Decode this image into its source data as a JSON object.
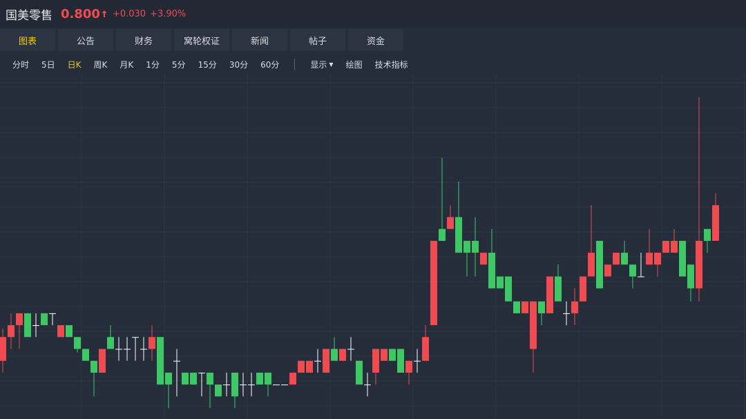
{
  "header": {
    "name": "国美零售",
    "price": "0.800",
    "change": "+0.030",
    "change_pct": "+3.90%"
  },
  "tabs": {
    "items": [
      "图表",
      "公告",
      "财务",
      "窝轮权证",
      "新闻",
      "帖子",
      "资金"
    ],
    "active": 0
  },
  "toolbar": {
    "periods": [
      "分时",
      "5日",
      "日K",
      "周K",
      "月K",
      "1分",
      "5分",
      "15分",
      "30分",
      "60分"
    ],
    "active": 2,
    "tools": [
      "显示",
      "绘图",
      "技术指标"
    ]
  },
  "chart_data": {
    "type": "candlestick",
    "up_color": "#f04b50",
    "down_color": "#3ec865",
    "doji_color": "#ffffff",
    "ylim": [
      0.62,
      0.91
    ],
    "ohlc": [
      [
        0.669,
        0.696,
        0.659,
        0.689
      ],
      [
        0.689,
        0.709,
        0.679,
        0.699
      ],
      [
        0.699,
        0.709,
        0.679,
        0.709
      ],
      [
        0.709,
        0.709,
        0.689,
        0.689
      ],
      [
        0.699,
        0.709,
        0.689,
        0.699
      ],
      [
        0.709,
        0.709,
        0.699,
        0.699
      ],
      [
        0.709,
        0.709,
        0.699,
        0.709
      ],
      [
        0.689,
        0.699,
        0.689,
        0.699
      ],
      [
        0.699,
        0.699,
        0.689,
        0.689
      ],
      [
        0.689,
        0.689,
        0.676,
        0.679
      ],
      [
        0.679,
        0.679,
        0.669,
        0.669
      ],
      [
        0.669,
        0.669,
        0.639,
        0.659
      ],
      [
        0.659,
        0.679,
        0.659,
        0.679
      ],
      [
        0.689,
        0.699,
        0.679,
        0.679
      ],
      [
        0.679,
        0.689,
        0.669,
        0.679
      ],
      [
        0.679,
        0.689,
        0.669,
        0.679
      ],
      [
        0.689,
        0.689,
        0.669,
        0.689
      ],
      [
        0.679,
        0.689,
        0.669,
        0.679
      ],
      [
        0.679,
        0.699,
        0.669,
        0.689
      ],
      [
        0.689,
        0.689,
        0.649,
        0.649
      ],
      [
        0.659,
        0.659,
        0.629,
        0.649
      ],
      [
        0.669,
        0.679,
        0.639,
        0.669
      ],
      [
        0.659,
        0.659,
        0.649,
        0.649
      ],
      [
        0.659,
        0.659,
        0.649,
        0.649
      ],
      [
        0.659,
        0.659,
        0.639,
        0.659
      ],
      [
        0.659,
        0.659,
        0.629,
        0.649
      ],
      [
        0.649,
        0.649,
        0.639,
        0.639
      ],
      [
        0.649,
        0.659,
        0.639,
        0.649
      ],
      [
        0.659,
        0.659,
        0.629,
        0.639
      ],
      [
        0.649,
        0.659,
        0.639,
        0.649
      ],
      [
        0.649,
        0.659,
        0.639,
        0.649
      ],
      [
        0.659,
        0.659,
        0.649,
        0.649
      ],
      [
        0.659,
        0.659,
        0.639,
        0.649
      ],
      [
        0.649,
        0.649,
        0.649,
        0.649
      ],
      [
        0.649,
        0.649,
        0.649,
        0.649
      ],
      [
        0.649,
        0.659,
        0.649,
        0.659
      ],
      [
        0.659,
        0.669,
        0.659,
        0.669
      ],
      [
        0.659,
        0.669,
        0.659,
        0.669
      ],
      [
        0.669,
        0.679,
        0.659,
        0.669
      ],
      [
        0.659,
        0.679,
        0.659,
        0.679
      ],
      [
        0.679,
        0.689,
        0.669,
        0.669
      ],
      [
        0.669,
        0.679,
        0.669,
        0.679
      ],
      [
        0.679,
        0.689,
        0.669,
        0.679
      ],
      [
        0.669,
        0.669,
        0.649,
        0.649
      ],
      [
        0.649,
        0.659,
        0.639,
        0.649
      ],
      [
        0.659,
        0.679,
        0.649,
        0.679
      ],
      [
        0.669,
        0.679,
        0.669,
        0.679
      ],
      [
        0.679,
        0.679,
        0.669,
        0.669
      ],
      [
        0.679,
        0.679,
        0.659,
        0.659
      ],
      [
        0.659,
        0.669,
        0.649,
        0.669
      ],
      [
        0.669,
        0.679,
        0.659,
        0.669
      ],
      [
        0.669,
        0.699,
        0.669,
        0.689
      ],
      [
        0.699,
        0.77,
        0.699,
        0.77
      ],
      [
        0.78,
        0.84,
        0.77,
        0.77
      ],
      [
        0.78,
        0.8,
        0.78,
        0.79
      ],
      [
        0.79,
        0.82,
        0.76,
        0.76
      ],
      [
        0.77,
        0.77,
        0.74,
        0.76
      ],
      [
        0.77,
        0.79,
        0.74,
        0.76
      ],
      [
        0.75,
        0.76,
        0.75,
        0.76
      ],
      [
        0.76,
        0.78,
        0.73,
        0.73
      ],
      [
        0.74,
        0.74,
        0.73,
        0.73
      ],
      [
        0.74,
        0.74,
        0.719,
        0.719
      ],
      [
        0.719,
        0.719,
        0.709,
        0.709
      ],
      [
        0.709,
        0.719,
        0.709,
        0.719
      ],
      [
        0.679,
        0.719,
        0.659,
        0.719
      ],
      [
        0.719,
        0.719,
        0.699,
        0.709
      ],
      [
        0.709,
        0.74,
        0.709,
        0.74
      ],
      [
        0.74,
        0.75,
        0.719,
        0.719
      ],
      [
        0.709,
        0.719,
        0.699,
        0.709
      ],
      [
        0.709,
        0.73,
        0.699,
        0.719
      ],
      [
        0.719,
        0.74,
        0.719,
        0.74
      ],
      [
        0.74,
        0.8,
        0.74,
        0.76
      ],
      [
        0.77,
        0.77,
        0.73,
        0.73
      ],
      [
        0.74,
        0.75,
        0.74,
        0.75
      ],
      [
        0.75,
        0.76,
        0.75,
        0.76
      ],
      [
        0.76,
        0.77,
        0.75,
        0.75
      ],
      [
        0.75,
        0.75,
        0.73,
        0.74
      ],
      [
        0.74,
        0.76,
        0.74,
        0.74
      ],
      [
        0.75,
        0.78,
        0.75,
        0.76
      ],
      [
        0.75,
        0.76,
        0.74,
        0.76
      ],
      [
        0.76,
        0.77,
        0.76,
        0.77
      ],
      [
        0.76,
        0.78,
        0.76,
        0.77
      ],
      [
        0.77,
        0.77,
        0.74,
        0.74
      ],
      [
        0.75,
        0.75,
        0.719,
        0.73
      ],
      [
        0.73,
        0.891,
        0.719,
        0.77
      ],
      [
        0.78,
        0.78,
        0.76,
        0.77
      ],
      [
        0.77,
        0.81,
        0.77,
        0.8
      ]
    ]
  }
}
